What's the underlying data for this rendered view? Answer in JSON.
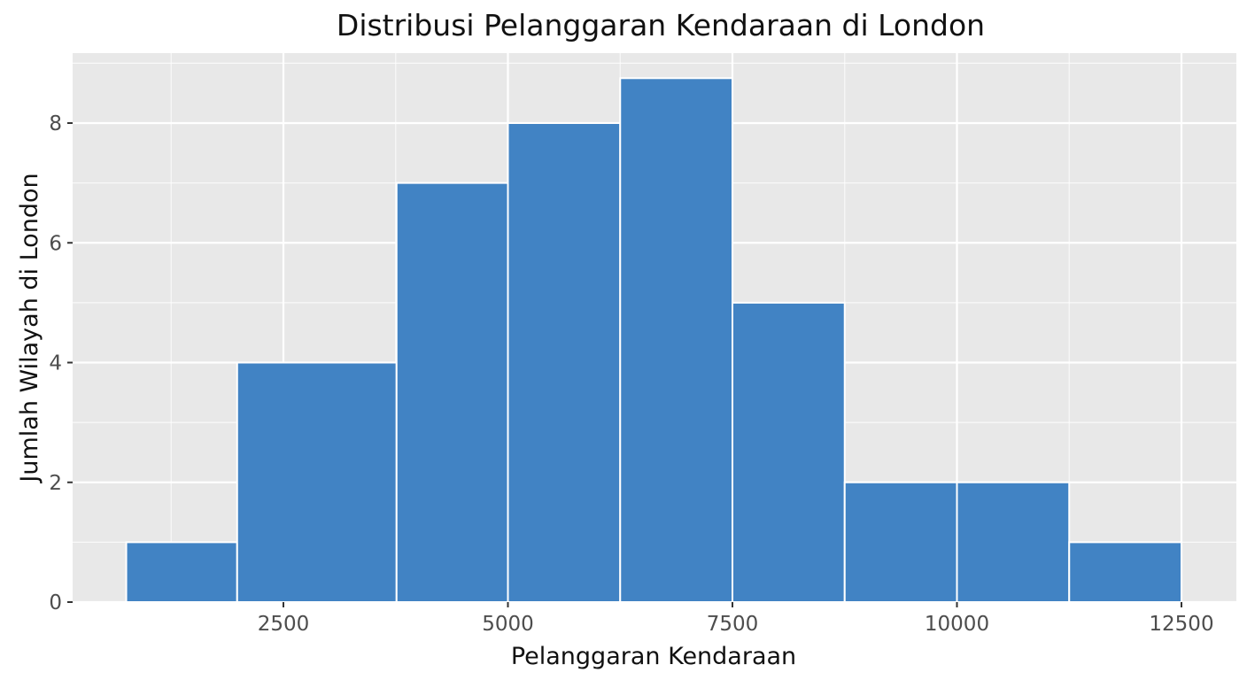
{
  "chart_data": {
    "type": "bar",
    "subtype": "histogram",
    "title": "Distribusi Pelanggaran Kendaraan di London",
    "xlabel": "Pelanggaran Kendaraan",
    "ylabel": "Jumlah Wilayah di London",
    "xlim": [
      275,
      13150
    ],
    "ylim": [
      0,
      9.1
    ],
    "x_ticks": [
      2500,
      5000,
      7500,
      10000,
      12500
    ],
    "y_ticks": [
      0,
      2,
      4,
      6,
      8
    ],
    "grid": true,
    "legend": null,
    "bins": [
      {
        "x0": 750,
        "x1": 1985,
        "count": 1
      },
      {
        "x0": 1985,
        "x1": 3760,
        "count": 4
      },
      {
        "x0": 3760,
        "x1": 5000,
        "count": 7
      },
      {
        "x0": 5000,
        "x1": 6250,
        "count": 8
      },
      {
        "x0": 6250,
        "x1": 7500,
        "count": 8.75
      },
      {
        "x0": 7500,
        "x1": 8750,
        "count": 5
      },
      {
        "x0": 8750,
        "x1": 10000,
        "count": 2
      },
      {
        "x0": 10000,
        "x1": 11250,
        "count": 2
      },
      {
        "x0": 11250,
        "x1": 12500,
        "count": 1
      }
    ],
    "categories": [
      "750-1985",
      "1985-3760",
      "3760-5000",
      "5000-6250",
      "6250-7500",
      "7500-8750",
      "8750-10000",
      "10000-11250",
      "11250-12500"
    ],
    "values": [
      1,
      4,
      7,
      8,
      8.75,
      5,
      2,
      2,
      1
    ],
    "colors": {
      "bar_fill": "#4183c4",
      "bar_edge": "#ffffff",
      "panel_bg": "#e8e8e8",
      "grid": "#ffffff"
    }
  }
}
